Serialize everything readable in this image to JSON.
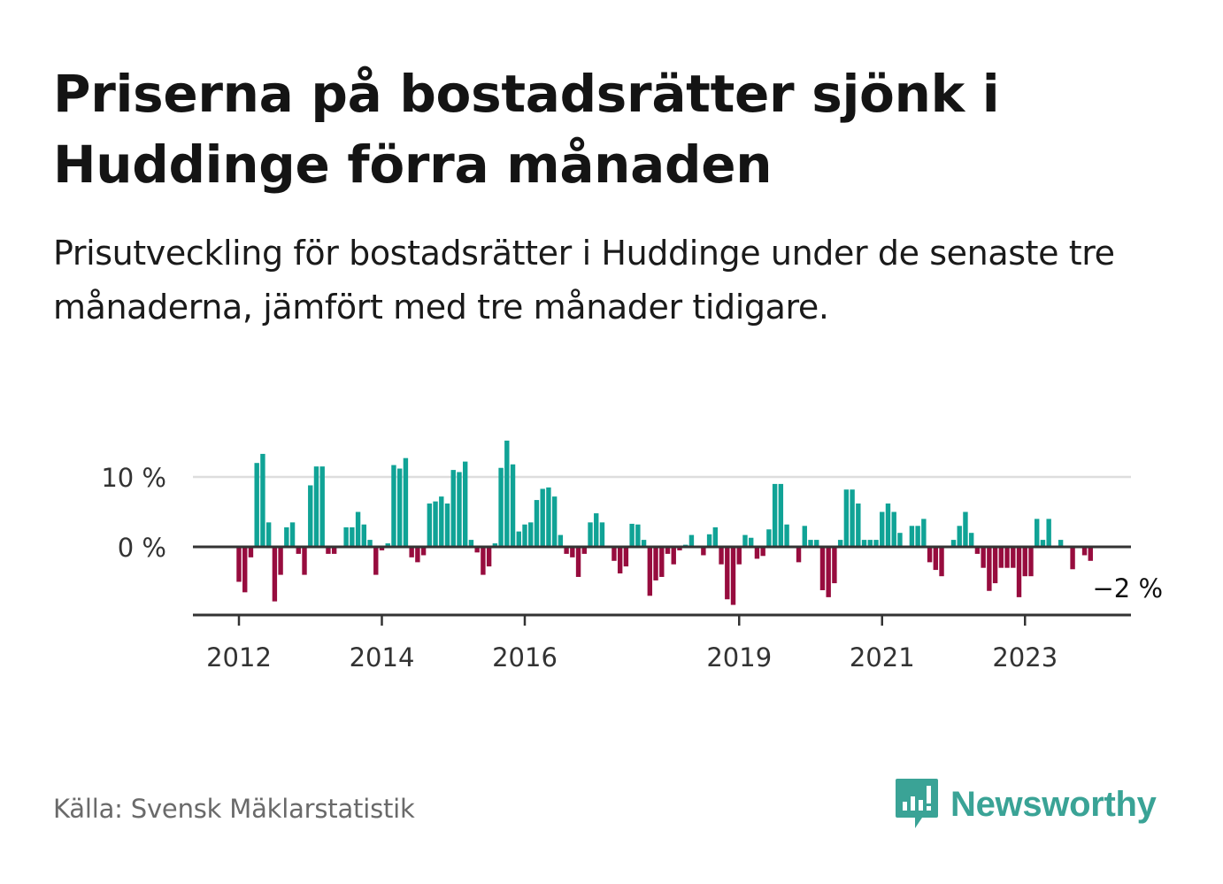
{
  "header": {
    "title": "Priserna på bostadsrätter sjönk i Huddinge förra månaden",
    "subtitle": "Prisutveckling för bostadsrätter i Huddinge under de senaste tre månaderna, jämfört med tre månader tidigare."
  },
  "footer": {
    "source": "Källa: Svensk Mäklarstatistik",
    "brand": "Newsworthy"
  },
  "colors": {
    "positive": "#10a396",
    "negative": "#970c3e",
    "axis": "#333333",
    "grid": "#dddddd",
    "brand": "#3aa396"
  },
  "chart_data": {
    "type": "bar",
    "title": "Prisutveckling för bostadsrätter i Huddinge",
    "xlabel": "",
    "ylabel": "",
    "unit": "%",
    "ylim": [
      -9,
      16
    ],
    "y_ticks": [
      {
        "value": 0,
        "label": "0 %"
      },
      {
        "value": 10,
        "label": "10 %"
      }
    ],
    "x_ticks": [
      {
        "label": "2012",
        "year": 2012
      },
      {
        "label": "2014",
        "year": 2014
      },
      {
        "label": "2016",
        "year": 2016
      },
      {
        "label": "2019",
        "year": 2019
      },
      {
        "label": "2021",
        "year": 2021
      },
      {
        "label": "2023",
        "year": 2023
      }
    ],
    "start": "2012-01",
    "end_label": "−2 %",
    "values": [
      -5,
      -6.5,
      -1.5,
      12,
      13.3,
      3.5,
      -7.8,
      -4,
      2.8,
      3.5,
      -1,
      -4,
      8.8,
      11.5,
      11.5,
      -1,
      -1,
      0,
      2.8,
      2.8,
      5,
      3.2,
      1,
      -4,
      -0.5,
      0.5,
      11.7,
      11.2,
      12.7,
      -1.5,
      -2.2,
      -1.2,
      6.2,
      6.5,
      7.2,
      6.2,
      11,
      10.7,
      12.2,
      1,
      -0.8,
      -4,
      -2.8,
      0.5,
      11.3,
      15.2,
      11.8,
      2.2,
      3.2,
      3.5,
      6.7,
      8.3,
      8.5,
      7.2,
      1.7,
      -1,
      -1.5,
      -4.3,
      -1,
      3.5,
      4.8,
      3.5,
      0,
      -2,
      -3.8,
      -2.8,
      3.3,
      3.2,
      1,
      -7,
      -4.8,
      -4.3,
      -1,
      -2.5,
      -0.5,
      0.3,
      1.7,
      0,
      -1.2,
      1.8,
      2.8,
      -2.5,
      -7.5,
      -8.3,
      -2.5,
      1.7,
      1.3,
      -1.7,
      -1.3,
      2.5,
      9,
      9,
      3.2,
      0,
      -2.2,
      3,
      1,
      1,
      -6.2,
      -7.2,
      -5.2,
      1,
      8.2,
      8.2,
      6.2,
      1,
      1,
      1,
      5,
      6.2,
      5,
      2,
      0,
      3,
      3,
      4,
      -2.2,
      -3.3,
      -4.2,
      0,
      1,
      3,
      5,
      2,
      -1,
      -3,
      -6.3,
      -5.2,
      -3,
      -3,
      -3,
      -7.2,
      -4.2,
      -4.2,
      4,
      1,
      4,
      0,
      1,
      0,
      -3.2,
      0,
      -1.2,
      -2
    ]
  }
}
